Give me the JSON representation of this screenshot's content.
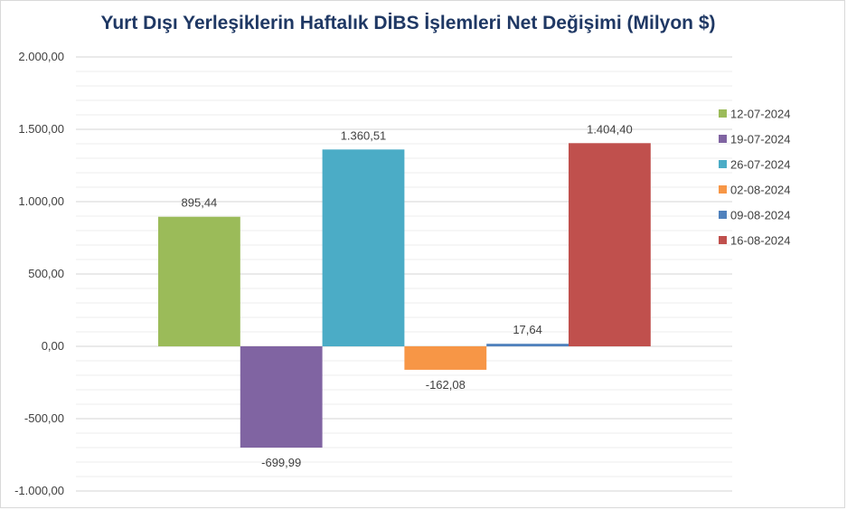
{
  "chart_data": {
    "type": "bar",
    "title": "Yurt Dışı Yerleşiklerin Haftalık DİBS İşlemleri Net Değişimi (Milyon $)",
    "xlabel": "",
    "ylabel": "",
    "ylim": [
      -1000,
      2000
    ],
    "yticks": [
      2000,
      1500,
      1000,
      500,
      0,
      -500,
      -1000
    ],
    "ytick_labels": [
      "2.000,00",
      "1.500,00",
      "1.000,00",
      "500,00",
      "0,00",
      "-500,00",
      "-1.000,00"
    ],
    "grid": true,
    "legend_position": "right",
    "series": [
      {
        "name": "12-07-2024",
        "value": 895.44,
        "label": "895,44",
        "color": "#9bbb59"
      },
      {
        "name": "19-07-2024",
        "value": -699.99,
        "label": "-699,99",
        "color": "#8064a2"
      },
      {
        "name": "26-07-2024",
        "value": 1360.51,
        "label": "1.360,51",
        "color": "#4bacc6"
      },
      {
        "name": "02-08-2024",
        "value": -162.08,
        "label": "-162,08",
        "color": "#f79646"
      },
      {
        "name": "09-08-2024",
        "value": 17.64,
        "label": "17,64",
        "color": "#4f81bd"
      },
      {
        "name": "16-08-2024",
        "value": 1404.4,
        "label": "1.404,40",
        "color": "#c0504d"
      }
    ]
  }
}
